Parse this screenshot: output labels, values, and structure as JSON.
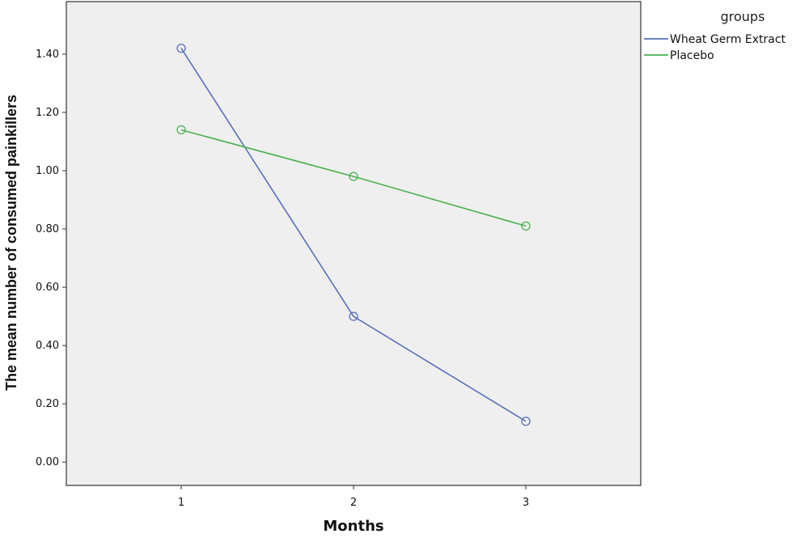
{
  "chart_data": {
    "type": "line",
    "xlabel": "Months",
    "ylabel": "The mean number of consumed painkillers",
    "categories": [
      "1",
      "2",
      "3"
    ],
    "ylim": [
      -0.08,
      1.58
    ],
    "yticks": [
      "0.00",
      "0.20",
      "0.40",
      "0.60",
      "0.80",
      "1.00",
      "1.20",
      "1.40"
    ],
    "grid": false,
    "legend": {
      "title": "groups",
      "placement": "right"
    },
    "series": [
      {
        "name": "Wheat Germ Extract",
        "color": "#5a6fba",
        "values": [
          1.42,
          0.5,
          0.14
        ]
      },
      {
        "name": "Placebo",
        "color": "#4cb050",
        "values": [
          1.14,
          0.98,
          0.81
        ]
      }
    ],
    "plot_background": "#efefef"
  }
}
